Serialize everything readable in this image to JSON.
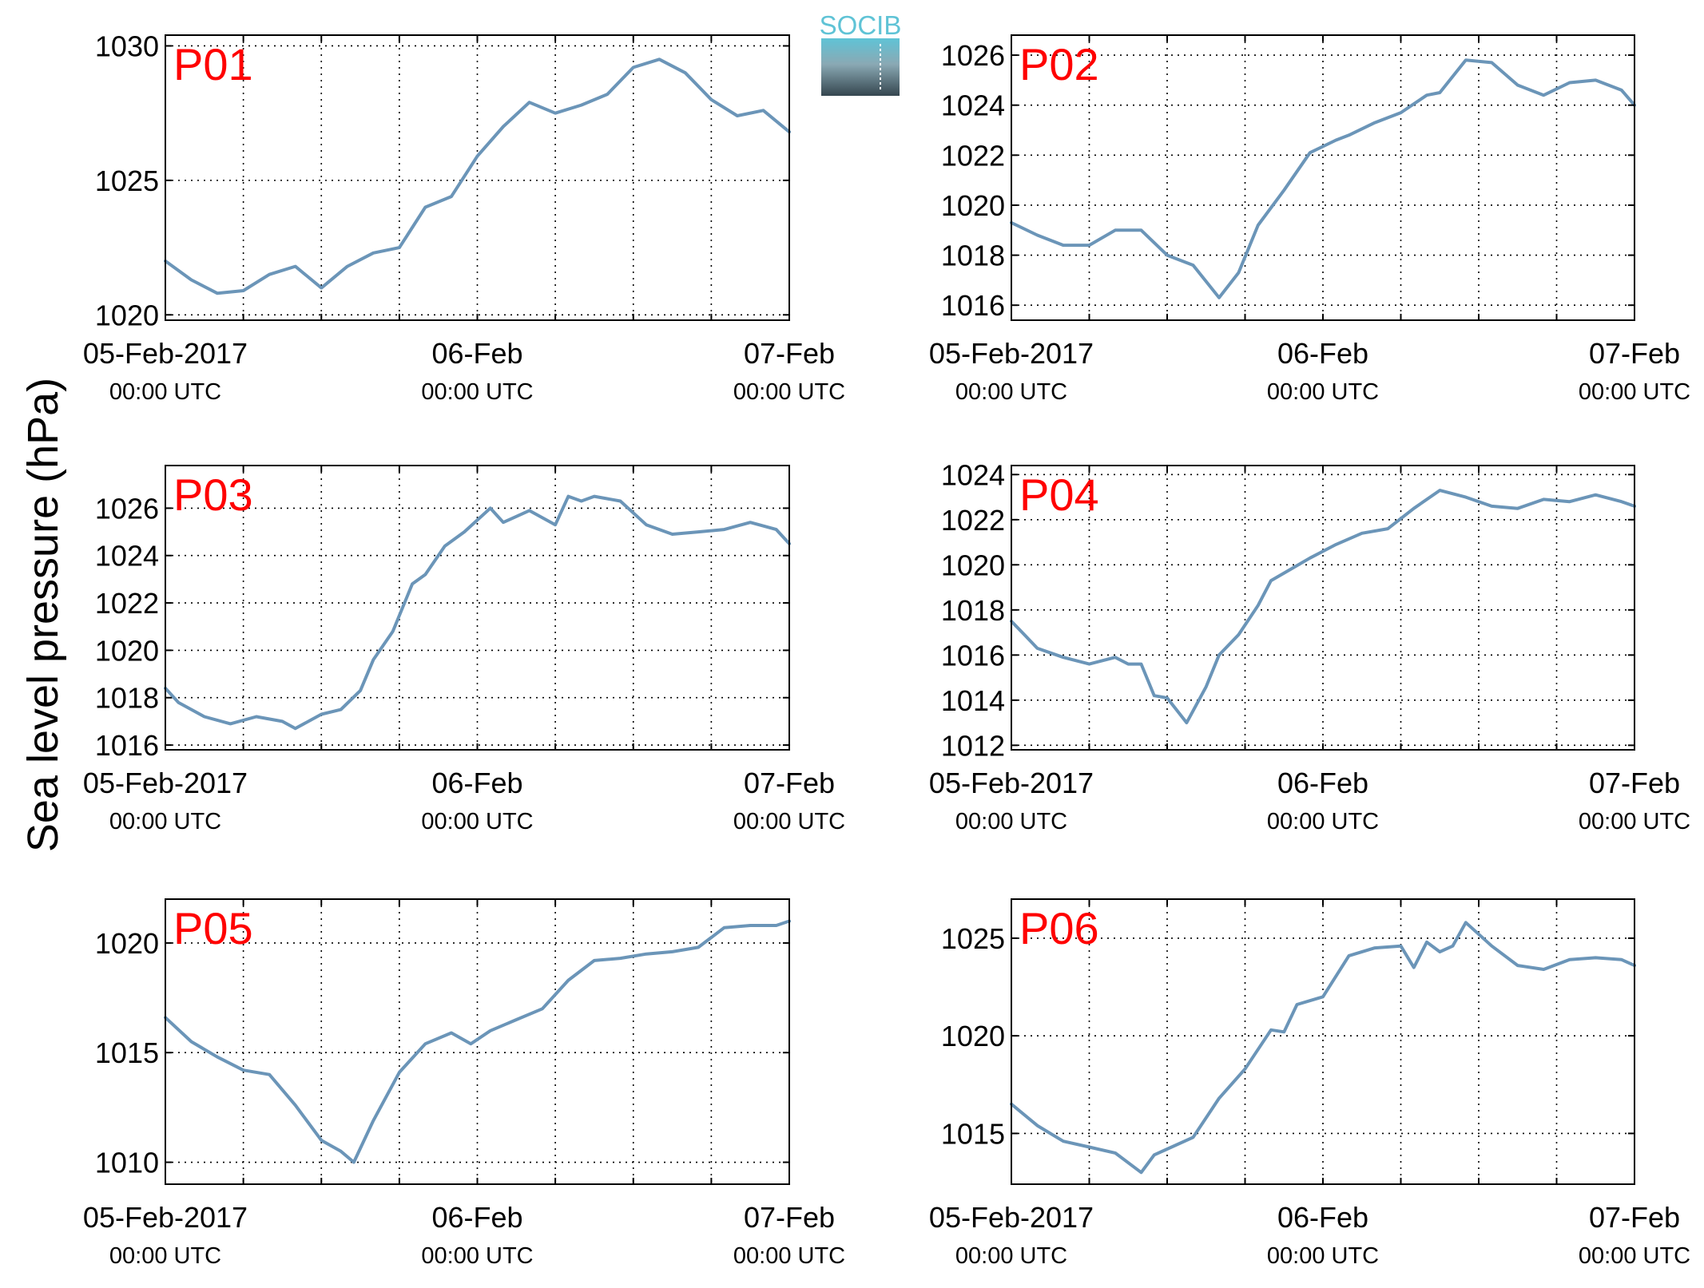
{
  "figure": {
    "ylabel": "Sea level pressure (hPa)",
    "logo_text": "SOCIB",
    "line_color": "#6b95b8",
    "panel_label_color": "#ff0000"
  },
  "chart_data": [
    {
      "type": "line",
      "label": "P01",
      "x": [
        0,
        2,
        4,
        6,
        8,
        10,
        12,
        14,
        16,
        18,
        20,
        22,
        24,
        26,
        28,
        30,
        32,
        34,
        36,
        38,
        40,
        42,
        44,
        46,
        48
      ],
      "y": [
        1022.0,
        1021.3,
        1020.8,
        1020.9,
        1021.5,
        1021.8,
        1021.0,
        1021.8,
        1022.3,
        1022.5,
        1024.0,
        1024.4,
        1025.9,
        1027.0,
        1027.9,
        1027.5,
        1027.8,
        1028.2,
        1029.2,
        1029.5,
        1029.0,
        1028.0,
        1027.4,
        1027.6,
        1026.8
      ],
      "xticks": [
        {
          "x": 0,
          "line1": "05-Feb-2017",
          "line2": "00:00 UTC"
        },
        {
          "x": 24,
          "line1": "06-Feb",
          "line2": "00:00 UTC"
        },
        {
          "x": 48,
          "line1": "07-Feb",
          "line2": "00:00 UTC"
        }
      ],
      "xgrid": [
        6,
        12,
        18,
        24,
        30,
        36,
        42
      ],
      "ylim": [
        1019.8,
        1030.4
      ],
      "yticks": [
        1020,
        1025,
        1030
      ],
      "ygrid": [
        1020,
        1025,
        1030
      ]
    },
    {
      "type": "line",
      "label": "P02",
      "x": [
        0,
        2,
        4,
        6,
        8,
        10,
        12,
        14,
        16,
        17.5,
        19,
        21,
        23,
        25,
        26,
        28,
        30,
        32,
        33,
        35,
        37,
        39,
        41,
        43,
        45,
        47,
        48
      ],
      "y": [
        1019.3,
        1018.8,
        1018.4,
        1018.4,
        1019.0,
        1019.0,
        1018.0,
        1017.6,
        1016.3,
        1017.3,
        1019.2,
        1020.6,
        1022.1,
        1022.6,
        1022.8,
        1023.3,
        1023.7,
        1024.4,
        1024.5,
        1025.8,
        1025.7,
        1024.8,
        1024.4,
        1024.9,
        1025.0,
        1024.6,
        1024.0
      ],
      "xticks": [
        {
          "x": 0,
          "line1": "05-Feb-2017",
          "line2": "00:00 UTC"
        },
        {
          "x": 24,
          "line1": "06-Feb",
          "line2": "00:00 UTC"
        },
        {
          "x": 48,
          "line1": "07-Feb",
          "line2": "00:00 UTC"
        }
      ],
      "xgrid": [
        6,
        12,
        18,
        24,
        30,
        36,
        42
      ],
      "ylim": [
        1015.4,
        1026.8
      ],
      "yticks": [
        1016,
        1018,
        1020,
        1022,
        1024,
        1026
      ],
      "ygrid": [
        1016,
        1018,
        1020,
        1022,
        1024,
        1026
      ]
    },
    {
      "type": "line",
      "label": "P03",
      "x": [
        0,
        1,
        3,
        5,
        7,
        9,
        10,
        12,
        13.5,
        15,
        16,
        17.5,
        19,
        20,
        21.5,
        23,
        25,
        26,
        28,
        30,
        31,
        32,
        33,
        35,
        37,
        39,
        41,
        43,
        45,
        47,
        48
      ],
      "y": [
        1018.4,
        1017.8,
        1017.2,
        1016.9,
        1017.2,
        1017.0,
        1016.7,
        1017.3,
        1017.5,
        1018.3,
        1019.6,
        1020.8,
        1022.8,
        1023.2,
        1024.4,
        1025.0,
        1026.0,
        1025.4,
        1025.9,
        1025.3,
        1026.5,
        1026.3,
        1026.5,
        1026.3,
        1025.3,
        1024.9,
        1025.0,
        1025.1,
        1025.4,
        1025.1,
        1024.5
      ],
      "xticks": [
        {
          "x": 0,
          "line1": "05-Feb-2017",
          "line2": "00:00 UTC"
        },
        {
          "x": 24,
          "line1": "06-Feb",
          "line2": "00:00 UTC"
        },
        {
          "x": 48,
          "line1": "07-Feb",
          "line2": "00:00 UTC"
        }
      ],
      "xgrid": [
        6,
        12,
        18,
        24,
        30,
        36,
        42
      ],
      "ylim": [
        1015.8,
        1027.8
      ],
      "yticks": [
        1016,
        1018,
        1020,
        1022,
        1024,
        1026
      ],
      "ygrid": [
        1016,
        1018,
        1020,
        1022,
        1024,
        1026
      ]
    },
    {
      "type": "line",
      "label": "P04",
      "x": [
        0,
        1,
        2,
        4,
        6,
        8,
        9,
        10,
        11,
        12,
        13.5,
        15,
        16,
        17.5,
        19,
        20,
        21.5,
        23,
        25,
        27,
        29,
        31,
        33,
        35,
        37,
        39,
        41,
        43,
        45,
        47,
        48
      ],
      "y": [
        1017.5,
        1016.9,
        1016.3,
        1015.9,
        1015.6,
        1015.9,
        1015.6,
        1015.6,
        1014.2,
        1014.1,
        1013.0,
        1014.6,
        1016.0,
        1016.9,
        1018.2,
        1019.3,
        1019.8,
        1020.3,
        1020.9,
        1021.4,
        1021.6,
        1022.5,
        1023.3,
        1023.0,
        1022.6,
        1022.5,
        1022.9,
        1022.8,
        1023.1,
        1022.8,
        1022.6
      ],
      "xticks": [
        {
          "x": 0,
          "line1": "05-Feb-2017",
          "line2": "00:00 UTC"
        },
        {
          "x": 24,
          "line1": "06-Feb",
          "line2": "00:00 UTC"
        },
        {
          "x": 48,
          "line1": "07-Feb",
          "line2": "00:00 UTC"
        }
      ],
      "xgrid": [
        6,
        12,
        18,
        24,
        30,
        36,
        42
      ],
      "ylim": [
        1011.8,
        1024.4
      ],
      "yticks": [
        1012,
        1014,
        1016,
        1018,
        1020,
        1022,
        1024
      ],
      "ygrid": [
        1012,
        1014,
        1016,
        1018,
        1020,
        1022,
        1024
      ]
    },
    {
      "type": "line",
      "label": "P05",
      "x": [
        0,
        2,
        4,
        6,
        8,
        10,
        12,
        13.5,
        14.5,
        16,
        18,
        20,
        22,
        23.5,
        25,
        27,
        29,
        31,
        33,
        35,
        37,
        39,
        41,
        43,
        45,
        47,
        48
      ],
      "y": [
        1016.6,
        1015.5,
        1014.8,
        1014.2,
        1014.0,
        1012.6,
        1011.0,
        1010.5,
        1010.0,
        1011.9,
        1014.1,
        1015.4,
        1015.9,
        1015.4,
        1016.0,
        1016.5,
        1017.0,
        1018.3,
        1019.2,
        1019.3,
        1019.5,
        1019.6,
        1019.8,
        1020.7,
        1020.8,
        1020.8,
        1021.0
      ],
      "xticks": [
        {
          "x": 0,
          "line1": "05-Feb-2017",
          "line2": "00:00 UTC"
        },
        {
          "x": 24,
          "line1": "06-Feb",
          "line2": "00:00 UTC"
        },
        {
          "x": 48,
          "line1": "07-Feb",
          "line2": "00:00 UTC"
        }
      ],
      "xgrid": [
        6,
        12,
        18,
        24,
        30,
        36,
        42
      ],
      "ylim": [
        1009.0,
        1022.0
      ],
      "yticks": [
        1010,
        1015,
        1020
      ],
      "ygrid": [
        1010,
        1015,
        1020
      ]
    },
    {
      "type": "line",
      "label": "P06",
      "x": [
        0,
        2,
        4,
        6,
        8,
        10,
        11,
        12,
        14,
        16,
        18,
        20,
        21,
        22,
        24,
        26,
        28,
        30,
        31,
        32,
        33,
        34,
        35,
        37,
        39,
        41,
        43,
        45,
        47,
        48
      ],
      "y": [
        1016.5,
        1015.4,
        1014.6,
        1014.3,
        1014.0,
        1013.0,
        1013.9,
        1014.2,
        1014.8,
        1016.8,
        1018.3,
        1020.3,
        1020.2,
        1021.6,
        1022.0,
        1024.1,
        1024.5,
        1024.6,
        1023.5,
        1024.8,
        1024.3,
        1024.6,
        1025.8,
        1024.6,
        1023.6,
        1023.4,
        1023.9,
        1024.0,
        1023.9,
        1023.6
      ],
      "xticks": [
        {
          "x": 0,
          "line1": "05-Feb-2017",
          "line2": "00:00 UTC"
        },
        {
          "x": 24,
          "line1": "06-Feb",
          "line2": "00:00 UTC"
        },
        {
          "x": 48,
          "line1": "07-Feb",
          "line2": "00:00 UTC"
        }
      ],
      "xgrid": [
        6,
        12,
        18,
        24,
        30,
        36,
        42
      ],
      "ylim": [
        1012.4,
        1027.0
      ],
      "yticks": [
        1015,
        1020,
        1025
      ],
      "ygrid": [
        1015,
        1020,
        1025
      ]
    }
  ]
}
